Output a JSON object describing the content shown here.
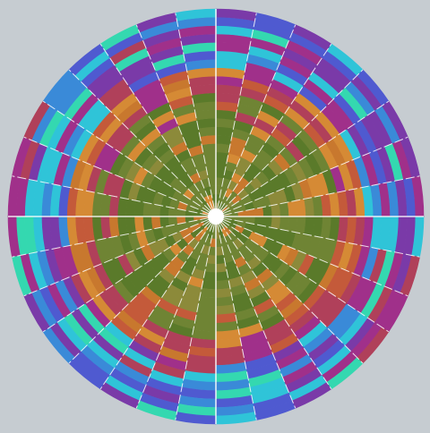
{
  "chart_data": {
    "type": "heatmap",
    "layout": "radial",
    "title": "",
    "xlabel": "",
    "ylabel": "",
    "grid": false,
    "legend": "none",
    "sectors": 32,
    "rings": 24,
    "sector_divider_color": "#ffffff",
    "hub_color": "#ffffff",
    "palette": [
      "#5a7a2a",
      "#6f8434",
      "#8c8a3a",
      "#c8782e",
      "#d58a35",
      "#c45a3a",
      "#b0405a",
      "#a0308a",
      "#7a3aa8",
      "#4f5ad0",
      "#3a8ad8",
      "#2fc4d8",
      "#34d8b0"
    ],
    "inner_band_index_range": [
      0,
      4
    ],
    "mid_band_index_range": [
      3,
      7
    ],
    "outer_band_index_range": [
      6,
      12
    ],
    "sector_green_strength": [
      0.9,
      0.4,
      0.2,
      0.7,
      0.3,
      0.8,
      0.5,
      0.1,
      0.85,
      0.6,
      0.3,
      0.9,
      0.2,
      0.5,
      0.7,
      0.3,
      0.95,
      0.4,
      0.6,
      0.2,
      0.8,
      0.3,
      0.7,
      0.5,
      0.9,
      0.2,
      0.6,
      0.4,
      0.85,
      0.3,
      0.5,
      0.7
    ]
  }
}
